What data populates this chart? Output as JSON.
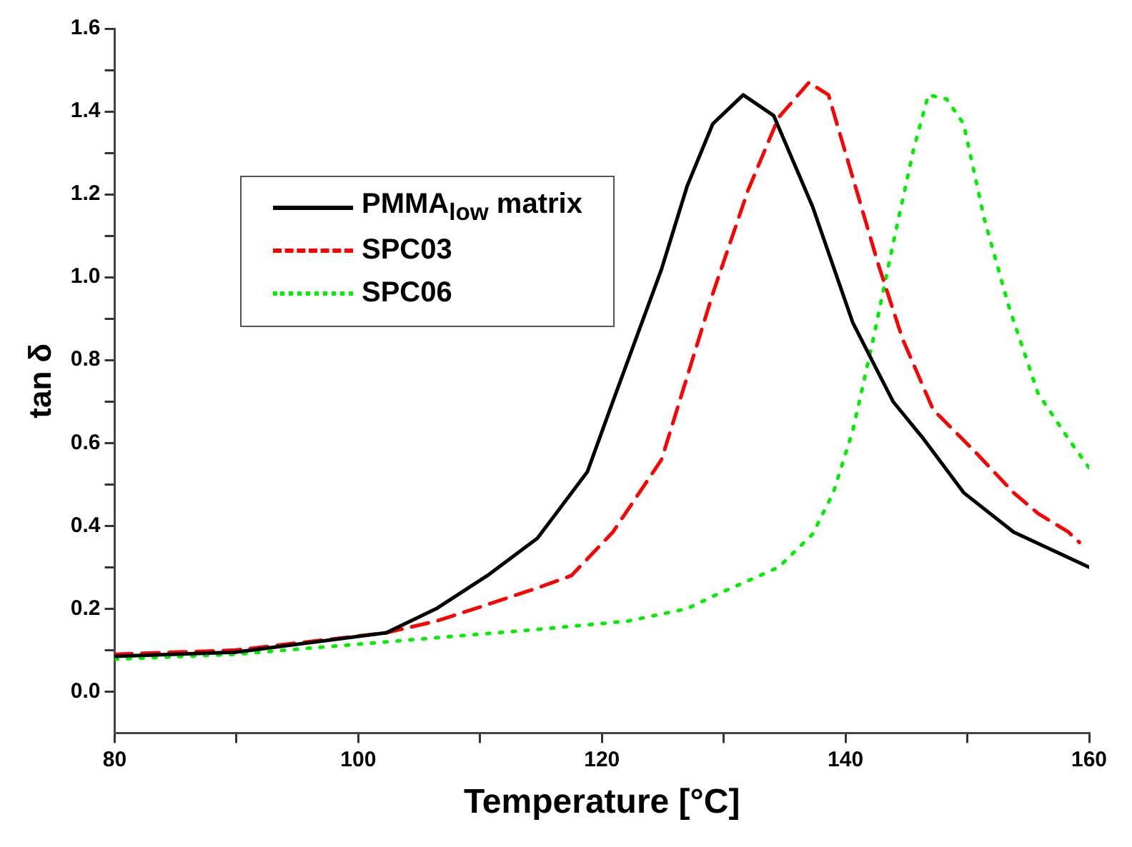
{
  "chart_data": {
    "type": "line",
    "xlabel": "Temperature [°C]",
    "ylabel": "tan δ",
    "xlim": [
      80,
      160
    ],
    "ylim": [
      -0.1,
      1.6
    ],
    "xticks": [
      80,
      {
        "value": 90,
        "label": null
      },
      100,
      {
        "value": 110,
        "label": null
      },
      120,
      {
        "value": 130,
        "label": null
      },
      140,
      {
        "value": 150,
        "label": null
      },
      160
    ],
    "yticks": [
      {
        "value": 0,
        "label": "0.0"
      },
      {
        "value": 0.1,
        "label": null
      },
      {
        "value": 0.2,
        "label": "0.2"
      },
      {
        "value": 0.3,
        "label": null
      },
      {
        "value": 0.4,
        "label": "0.4"
      },
      {
        "value": 0.5,
        "label": null
      },
      {
        "value": 0.6,
        "label": "0.6"
      },
      {
        "value": 0.7,
        "label": null
      },
      {
        "value": 0.8,
        "label": "0.8"
      },
      {
        "value": 0.9,
        "label": null
      },
      {
        "value": 1.0,
        "label": "1.0"
      },
      {
        "value": 1.1,
        "label": null
      },
      {
        "value": 1.2,
        "label": "1.2"
      },
      {
        "value": 1.3,
        "label": null
      },
      {
        "value": 1.4,
        "label": "1.4"
      },
      {
        "value": 1.5,
        "label": null
      },
      {
        "value": 1.6,
        "label": "1.6"
      }
    ],
    "grid": false,
    "legend": "top left",
    "marker": "none",
    "series": [
      {
        "name": "PMMA$_{low}$ matrix",
        "color": "#000000",
        "line_style": "solid",
        "x": [
          80,
          89.9,
          102.3,
          106.4,
          110.6,
          114.7,
          118.8,
          120.9,
          124.9,
          127,
          129.1,
          131.6,
          134.1,
          137.3,
          140.6,
          143.9,
          146.4,
          149.7,
          153.8,
          160
        ],
        "values": [
          0.085,
          0.095,
          0.142,
          0.2,
          0.28,
          0.37,
          0.53,
          0.7,
          1.02,
          1.22,
          1.37,
          1.44,
          1.39,
          1.17,
          0.89,
          0.7,
          0.61,
          0.48,
          0.385,
          0.3
        ]
      },
      {
        "name": "SPC03",
        "color": "#ff0000",
        "line_style": "dashed",
        "x": [
          80,
          89.9,
          102.3,
          106.4,
          110.6,
          114.7,
          117.5,
          120.9,
          124.9,
          129.1,
          132,
          134.5,
          137,
          138.6,
          140.2,
          142.7,
          144.7,
          147.2,
          150.6,
          153.8,
          155.8,
          158.3,
          159.2
        ],
        "values": [
          0.09,
          0.1,
          0.142,
          0.17,
          0.21,
          0.25,
          0.28,
          0.385,
          0.56,
          0.96,
          1.21,
          1.385,
          1.47,
          1.44,
          1.28,
          1.03,
          0.85,
          0.68,
          0.58,
          0.48,
          0.43,
          0.385,
          0.36
        ]
      },
      {
        "name": "SPC06",
        "color": "#00ee00",
        "line_style": "dotted",
        "x": [
          80,
          89.9,
          102.3,
          114.7,
          122.1,
          127,
          129.1,
          134.5,
          137.3,
          139,
          140.6,
          142.2,
          143.9,
          145.6,
          146.8,
          148.3,
          149.7,
          151.4,
          153.4,
          155.8,
          158.3,
          160
        ],
        "values": [
          0.078,
          0.09,
          0.12,
          0.15,
          0.17,
          0.2,
          0.23,
          0.3,
          0.38,
          0.48,
          0.63,
          0.84,
          1.08,
          1.31,
          1.44,
          1.43,
          1.37,
          1.14,
          0.93,
          0.72,
          0.61,
          0.54
        ]
      }
    ]
  }
}
